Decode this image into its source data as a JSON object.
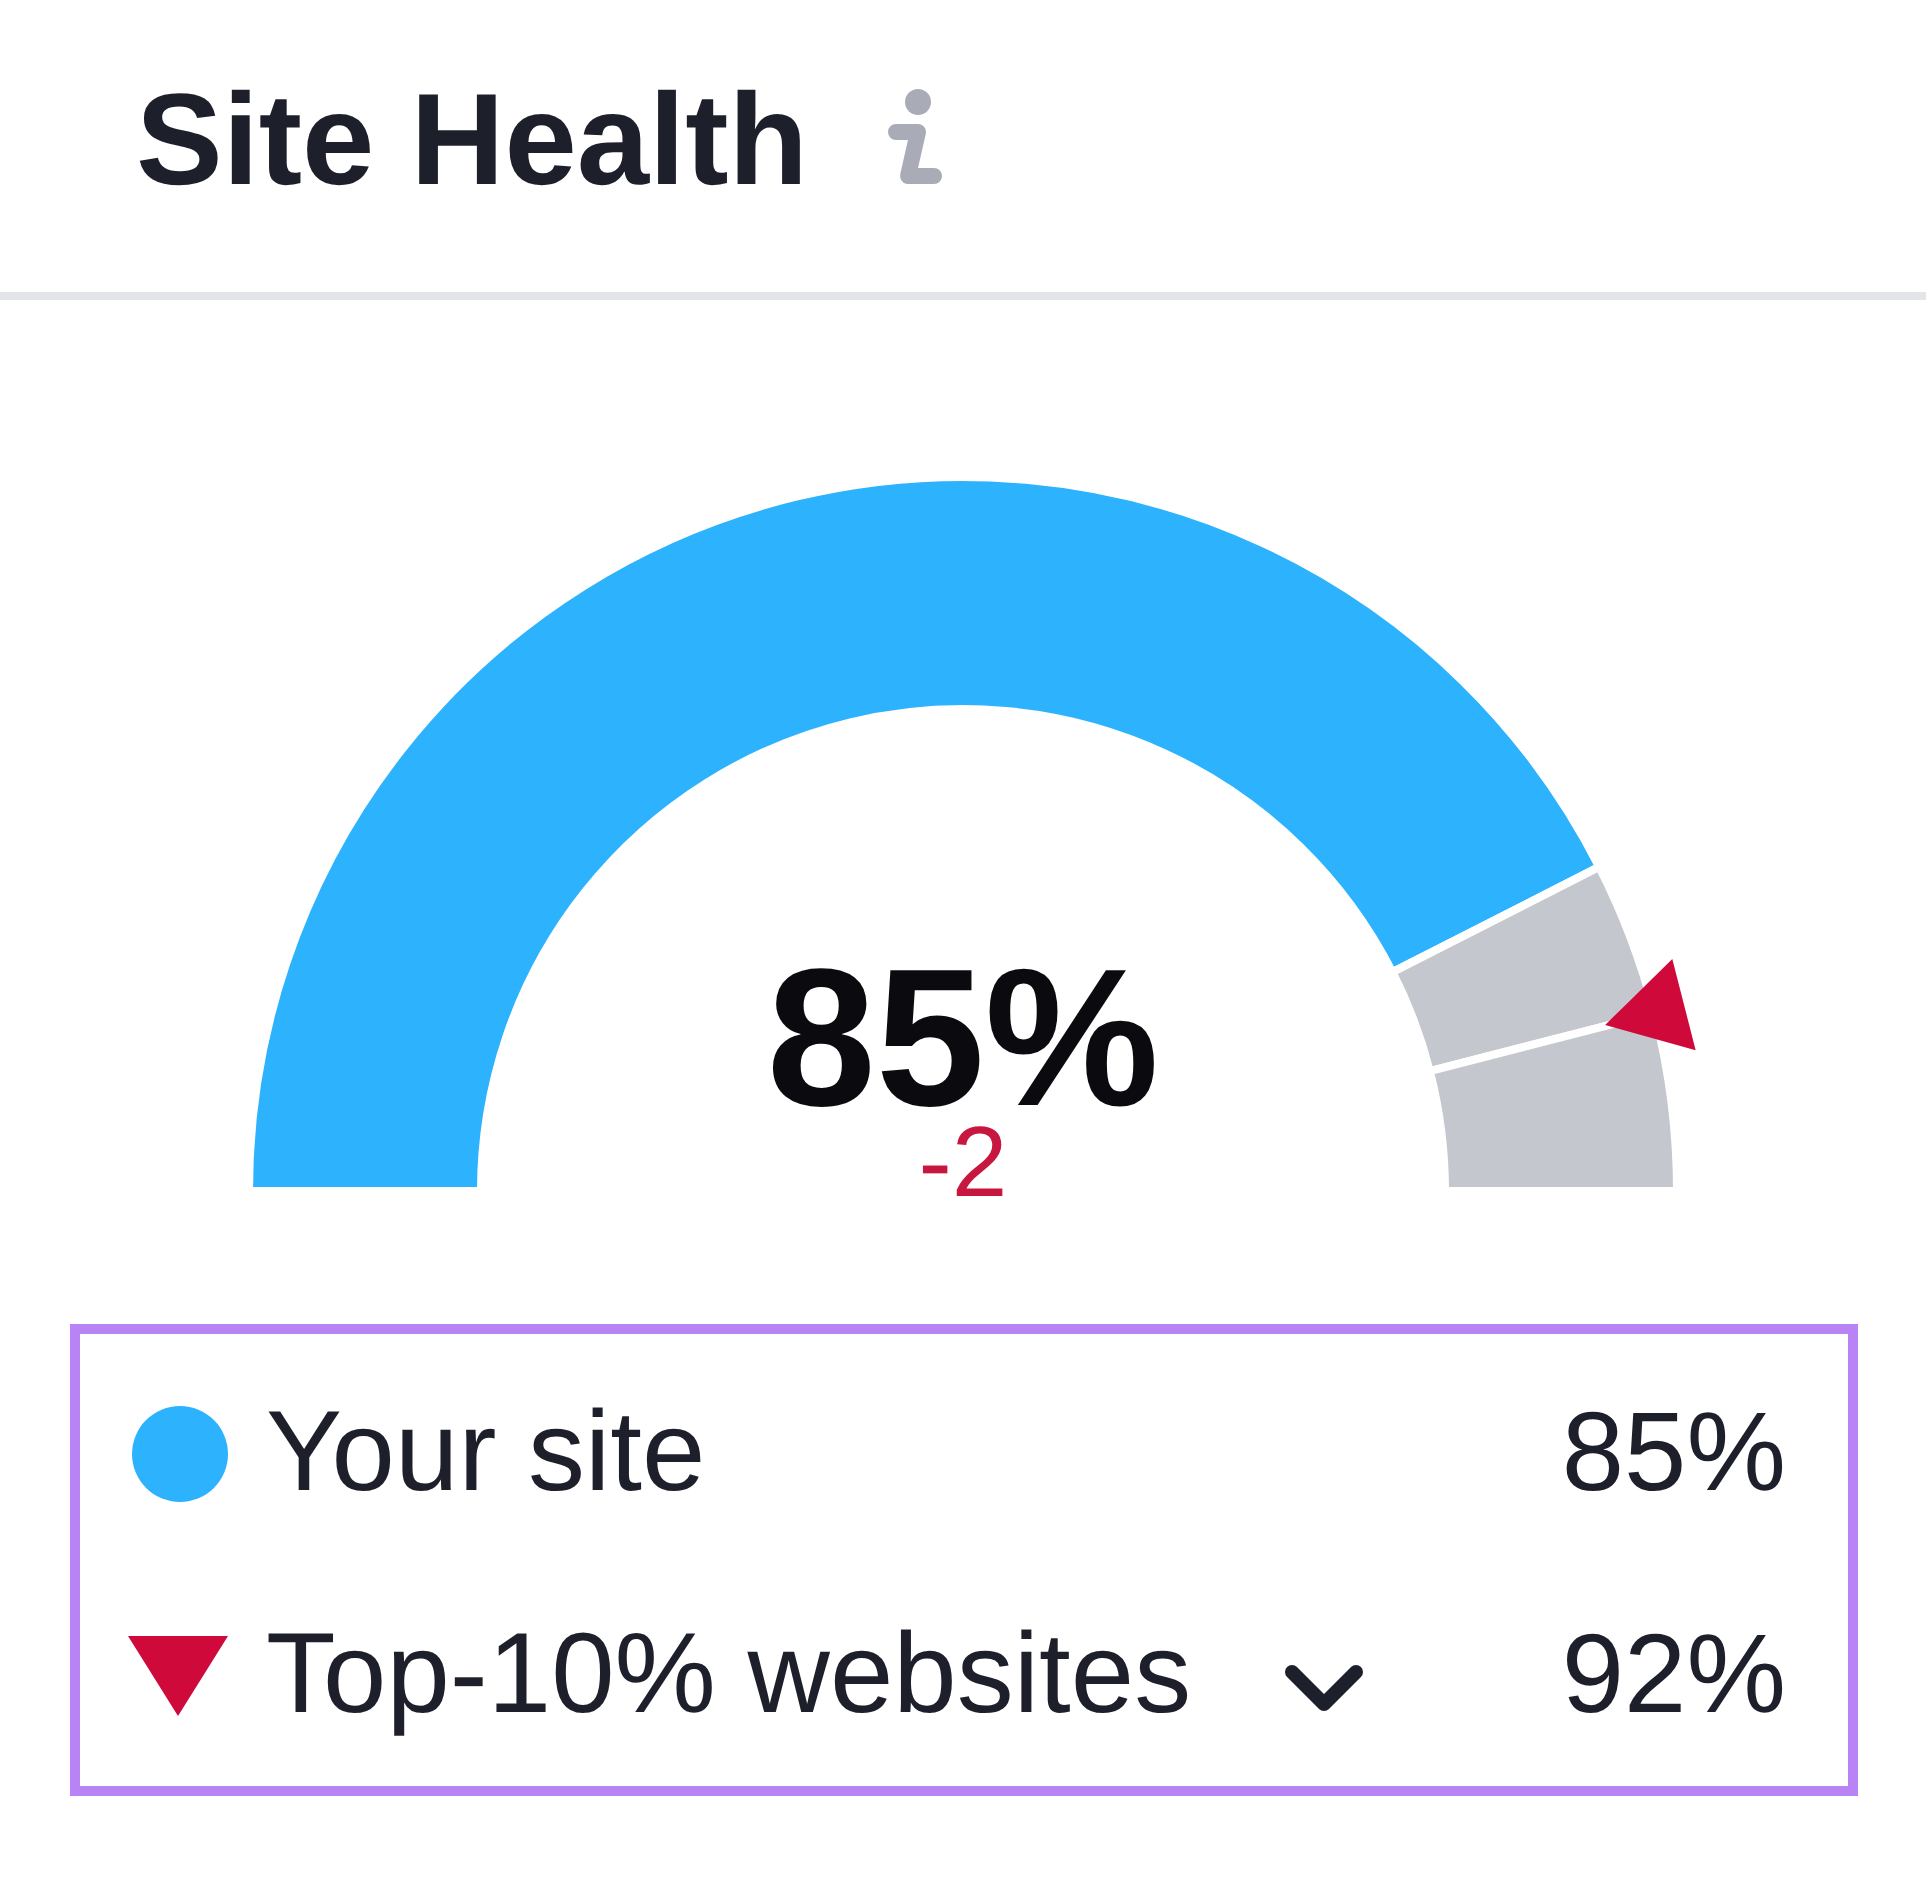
{
  "chart_data": {
    "type": "donut",
    "title": "Site Health",
    "categories": [
      "Your site",
      null,
      null
    ],
    "values": [
      85,
      7,
      8
    ],
    "colors": [
      "#2db3fe",
      "#c5c7cf",
      "#c5c7cf"
    ],
    "value_labels": [
      "85%",
      null,
      null
    ],
    "annotations": [
      "-2",
      "Top-10% websites",
      "92%"
    ],
    "legend": "bottom"
  }
}
